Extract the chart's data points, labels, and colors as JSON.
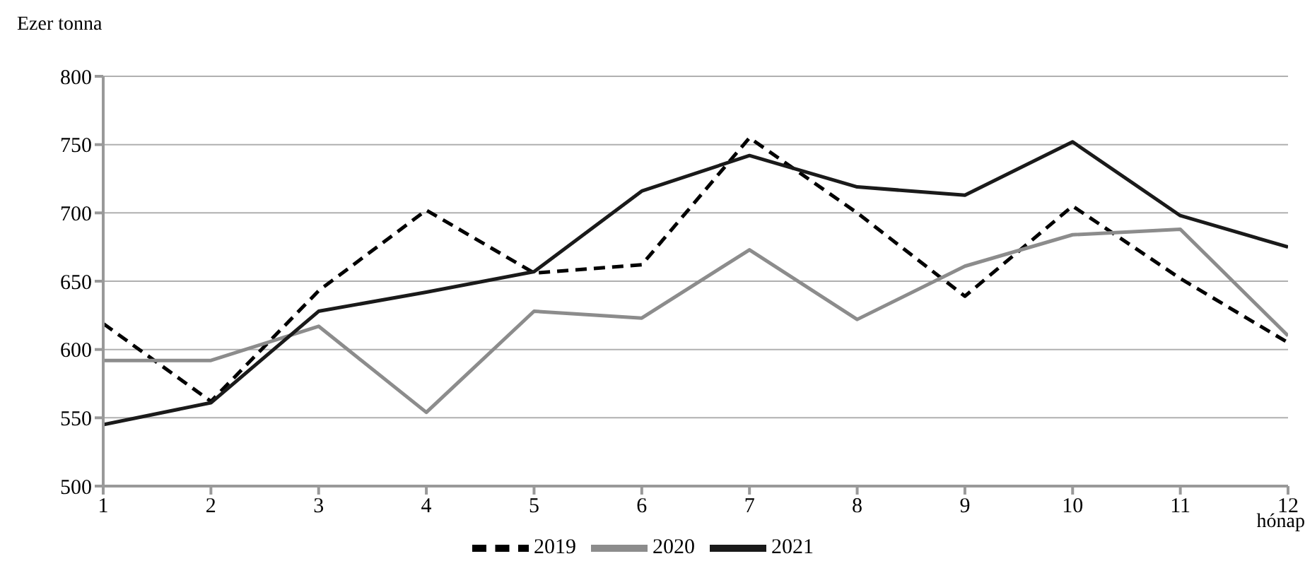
{
  "chart_data": {
    "type": "line",
    "ylabel": "Ezer tonna",
    "xlabel": "hónap",
    "x": [
      1,
      2,
      3,
      4,
      5,
      6,
      7,
      8,
      9,
      10,
      11,
      12
    ],
    "xlim": [
      1,
      12
    ],
    "xticks": [
      1,
      2,
      3,
      4,
      5,
      6,
      7,
      8,
      9,
      10,
      11,
      12
    ],
    "ylim": [
      500,
      800
    ],
    "yticks": [
      500,
      550,
      600,
      650,
      700,
      750,
      800
    ],
    "grid": "y",
    "legend": "bottom",
    "marker": "none",
    "series": [
      {
        "name": "2019",
        "color": "#000000",
        "line_style": "dashed",
        "values": [
          619,
          562,
          643,
          702,
          656,
          662,
          755,
          700,
          639,
          705,
          652,
          605
        ]
      },
      {
        "name": "2020",
        "color": "#8c8c8c",
        "line_style": "solid",
        "values": [
          592,
          592,
          617,
          554,
          628,
          623,
          673,
          622,
          661,
          684,
          688,
          610
        ]
      },
      {
        "name": "2021",
        "color": "#1a1a1a",
        "line_style": "solid",
        "values": [
          545,
          561,
          628,
          642,
          657,
          716,
          742,
          719,
          713,
          752,
          698,
          675
        ]
      }
    ]
  }
}
